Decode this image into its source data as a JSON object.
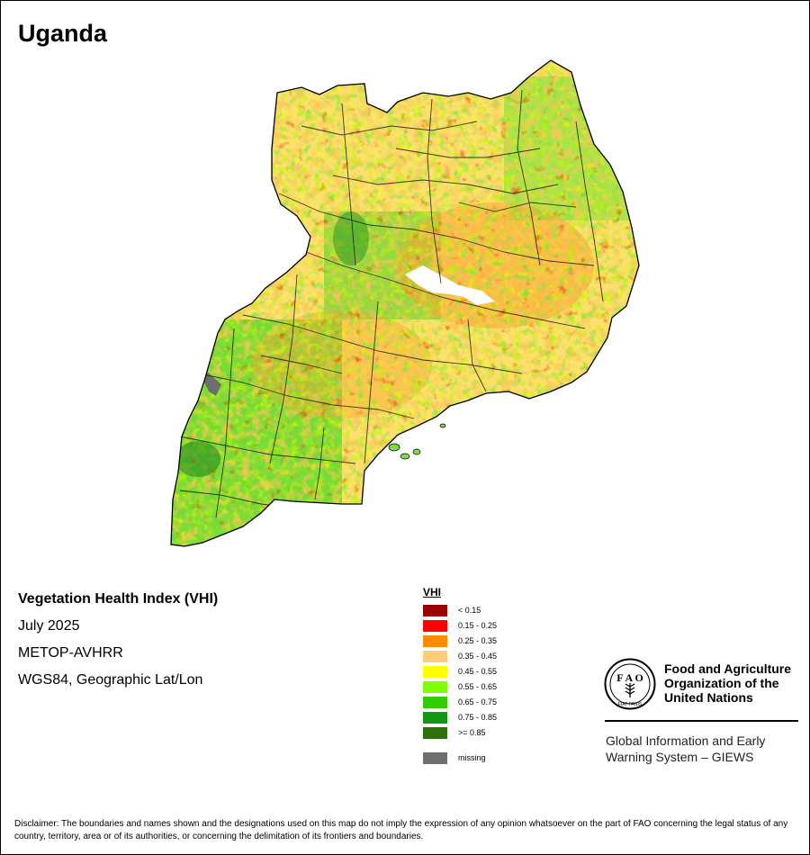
{
  "title": "Uganda",
  "info": {
    "index_name": "Vegetation Health Index (VHI)",
    "date": "July 2025",
    "sensor": "METOP-AVHRR",
    "projection": "WGS84, Geographic Lat/Lon"
  },
  "legend": {
    "title": "VHI",
    "classes": [
      {
        "label": "< 0.15",
        "color": "#9b0000"
      },
      {
        "label": "0.15 - 0.25",
        "color": "#ff0000"
      },
      {
        "label": "0.25 - 0.35",
        "color": "#ff8c00"
      },
      {
        "label": "0.35 - 0.45",
        "color": "#ffcc77"
      },
      {
        "label": "0.45 - 0.55",
        "color": "#ffff00"
      },
      {
        "label": "0.55 - 0.65",
        "color": "#80ff00"
      },
      {
        "label": "0.65 - 0.75",
        "color": "#33cc00"
      },
      {
        "label": "0.75 - 0.85",
        "color": "#119911"
      },
      {
        "label": ">= 0.85",
        "color": "#2f6e0b"
      }
    ],
    "missing": {
      "label": "missing",
      "color": "#6e6e6e"
    }
  },
  "organization": {
    "line1": "Food and Agriculture",
    "line2": "Organization of the",
    "line3": "United Nations",
    "logo_text": "FAO",
    "logo_motto": "FIAT PANIS"
  },
  "giews": {
    "line1": "Global Information and Early",
    "line2": "Warning System – GIEWS"
  },
  "disclaimer": "Disclaimer: The boundaries and names shown and the designations used on this map do not imply the expression of any opinion whatsoever on the part of FAO concerning the legal status of any country, territory, area or of its authorities, or concerning the delimitation of its frontiers and boundaries."
}
